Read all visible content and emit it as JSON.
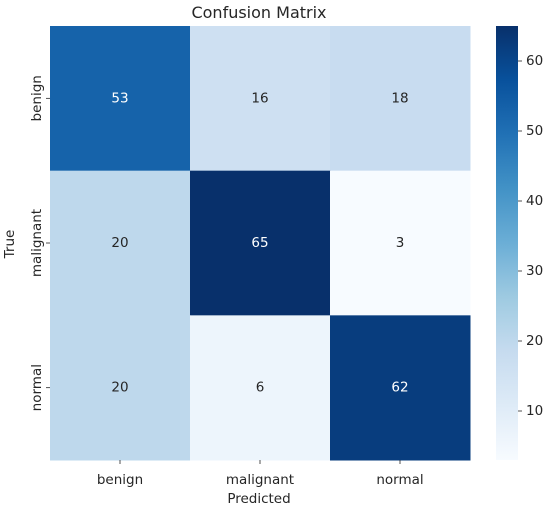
{
  "chart_data": {
    "type": "heatmap",
    "title": "Confusion Matrix",
    "xlabel": "Predicted",
    "ylabel": "True",
    "x_categories": [
      "benign",
      "malignant",
      "normal"
    ],
    "y_categories": [
      "benign",
      "malignant",
      "normal"
    ],
    "values": [
      [
        53,
        16,
        18
      ],
      [
        20,
        65,
        3
      ],
      [
        20,
        6,
        62
      ]
    ],
    "colormap": "Blues",
    "color_range": [
      3,
      65
    ],
    "colorbar_ticks": [
      10,
      20,
      30,
      40,
      50,
      60
    ],
    "colors": {
      "low": "#f7fbff",
      "high": "#08306b",
      "text_dark": "#262626",
      "text_light": "#ffffff"
    }
  }
}
